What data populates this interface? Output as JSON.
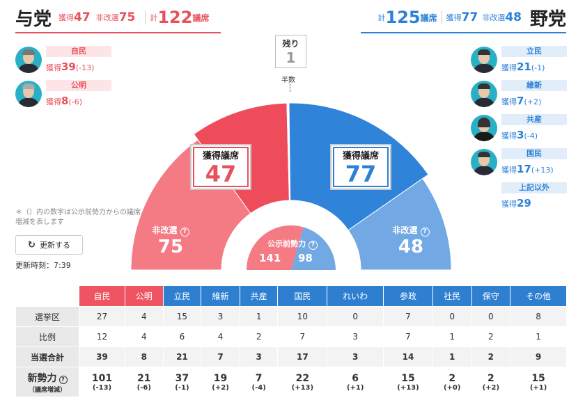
{
  "ruling": {
    "title": "与党",
    "gained_label": "獲得",
    "gained": "47",
    "nonup_label": "非改選",
    "nonup": "75",
    "total_label": "計",
    "total": "122",
    "unit": "議席"
  },
  "opposition": {
    "title": "野党",
    "total_label": "計",
    "total": "125",
    "unit": "議席",
    "gained_label": "獲得",
    "gained": "77",
    "nonup_label": "非改選",
    "nonup": "48"
  },
  "ruling_parties": [
    {
      "name": "自民",
      "gain_label": "獲得",
      "gain": "39",
      "diff": "(-13)"
    },
    {
      "name": "公明",
      "gain_label": "獲得",
      "gain": "8",
      "diff": "(-6)"
    }
  ],
  "opposition_parties": [
    {
      "name": "立民",
      "gain_label": "獲得",
      "gain": "21",
      "diff": "(-1)"
    },
    {
      "name": "維新",
      "gain_label": "獲得",
      "gain": "7",
      "diff": "(+2)"
    },
    {
      "name": "共産",
      "gain_label": "獲得",
      "gain": "3",
      "diff": "(-4)"
    },
    {
      "name": "国民",
      "gain_label": "獲得",
      "gain": "17",
      "diff": "(+13)"
    },
    {
      "name": "上記以外",
      "gain_label": "獲得",
      "gain": "29",
      "diff": ""
    }
  ],
  "remaining": {
    "label": "残り",
    "value": "1"
  },
  "half_label": "半数",
  "chart": {
    "ruling_gain_label": "獲得議席",
    "ruling_gain": "47",
    "opp_gain_label": "獲得議席",
    "opp_gain": "77",
    "ruling_nonup_label": "非改選",
    "ruling_nonup": "75",
    "opp_nonup_label": "非改選",
    "opp_nonup": "48",
    "pre_label": "公示前勢力",
    "pre_ruling": "141",
    "pre_opp": "98",
    "help_glyph": "?"
  },
  "chart_data": {
    "type": "pie",
    "title": "",
    "categories": [
      "与党 非改選",
      "与党 獲得議席",
      "残り",
      "野党 獲得議席",
      "野党 非改選"
    ],
    "values": [
      75,
      47,
      1,
      77,
      48
    ],
    "pre_election": {
      "与党": 141,
      "野党": 98
    },
    "colors": {
      "ruling_nonup": "#f47a84",
      "ruling_gain": "#ef4c5b",
      "opp_gain": "#2f83d9",
      "opp_nonup": "#72a9e4"
    }
  },
  "note": "＊（）内の数字は公示前勢力からの議席増減を表します",
  "refresh_label": "更新する",
  "update_time_label": "更新時刻：7:39",
  "table": {
    "headers": [
      {
        "name": "自民",
        "side": "red"
      },
      {
        "name": "公明",
        "side": "red"
      },
      {
        "name": "立民",
        "side": "blue"
      },
      {
        "name": "維新",
        "side": "blue"
      },
      {
        "name": "共産",
        "side": "blue"
      },
      {
        "name": "国民",
        "side": "blue"
      },
      {
        "name": "れいわ",
        "side": "blue"
      },
      {
        "name": "参政",
        "side": "blue"
      },
      {
        "name": "社民",
        "side": "blue"
      },
      {
        "name": "保守",
        "side": "blue"
      },
      {
        "name": "その他",
        "side": "blue"
      }
    ],
    "rows": [
      {
        "label": "選挙区",
        "values": [
          "27",
          "4",
          "15",
          "3",
          "1",
          "10",
          "0",
          "7",
          "0",
          "0",
          "8"
        ]
      },
      {
        "label": "比例",
        "values": [
          "12",
          "4",
          "6",
          "4",
          "2",
          "7",
          "3",
          "7",
          "1",
          "2",
          "1"
        ]
      },
      {
        "label": "当選合計",
        "values": [
          "39",
          "8",
          "21",
          "7",
          "3",
          "17",
          "3",
          "14",
          "1",
          "2",
          "9"
        ]
      }
    ],
    "final": {
      "label": "新勢力",
      "sub_label": "（議席増減）",
      "values": [
        "101",
        "21",
        "37",
        "19",
        "7",
        "22",
        "6",
        "15",
        "2",
        "2",
        "15"
      ],
      "diffs": [
        "(-13)",
        "(-6)",
        "(-1)",
        "(+2)",
        "(-4)",
        "(+13)",
        "(+1)",
        "(+13)",
        "(+0)",
        "(+2)",
        "(+1)"
      ]
    }
  }
}
